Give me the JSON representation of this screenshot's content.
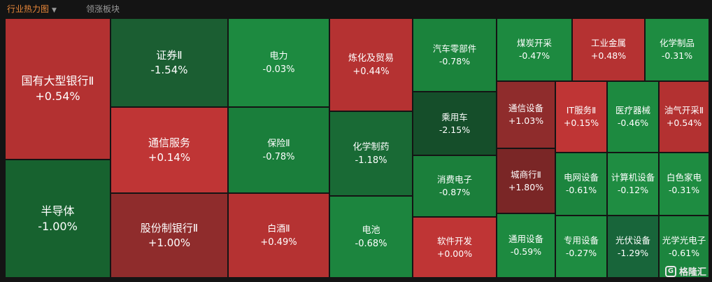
{
  "tabs": {
    "active": "行业热力图",
    "inactive": "领涨板块"
  },
  "colors": {
    "background": "#141414",
    "tab_active": "#e8873a",
    "tab_inactive": "#9a9a9a"
  },
  "tiles": [
    {
      "name": "国有大型银行Ⅱ",
      "change": "+0.54%",
      "color": "#b33131"
    },
    {
      "name": "半导体",
      "change": "-1.00%",
      "color": "#17622f"
    },
    {
      "name": "证券Ⅱ",
      "change": "-1.54%",
      "color": "#1b5e32"
    },
    {
      "name": "通信服务",
      "change": "+0.14%",
      "color": "#bf3535"
    },
    {
      "name": "股份制银行Ⅱ",
      "change": "+1.00%",
      "color": "#8f2c2c"
    },
    {
      "name": "电力",
      "change": "-0.03%",
      "color": "#1d8a40"
    },
    {
      "name": "保险Ⅱ",
      "change": "-0.78%",
      "color": "#1a7e3b"
    },
    {
      "name": "白酒Ⅱ",
      "change": "+0.49%",
      "color": "#b53232"
    },
    {
      "name": "炼化及贸易",
      "change": "+0.44%",
      "color": "#b53232"
    },
    {
      "name": "化学制药",
      "change": "-1.18%",
      "color": "#196a35"
    },
    {
      "name": "电池",
      "change": "-0.68%",
      "color": "#1c853e"
    },
    {
      "name": "汽车零部件",
      "change": "-0.78%",
      "color": "#1b833c"
    },
    {
      "name": "乘用车",
      "change": "-2.15%",
      "color": "#154e2a"
    },
    {
      "name": "消费电子",
      "change": "-0.87%",
      "color": "#1b7f3b"
    },
    {
      "name": "软件开发",
      "change": "+0.00%",
      "color": "#bf3535"
    },
    {
      "name": "煤炭开采",
      "change": "-0.47%",
      "color": "#1d8a40"
    },
    {
      "name": "通信设备",
      "change": "+1.03%",
      "color": "#8f2c2c"
    },
    {
      "name": "城商行Ⅱ",
      "change": "+1.80%",
      "color": "#7a2626"
    },
    {
      "name": "通用设备",
      "change": "-0.59%",
      "color": "#1d8a40"
    },
    {
      "name": "工业金属",
      "change": "+0.48%",
      "color": "#b53232"
    },
    {
      "name": "IT服务Ⅱ",
      "change": "+0.15%",
      "color": "#bf3535"
    },
    {
      "name": "医疗器械",
      "change": "-0.46%",
      "color": "#1d8a40"
    },
    {
      "name": "电网设备",
      "change": "-0.61%",
      "color": "#1c853e"
    },
    {
      "name": "计算机设备",
      "change": "-0.12%",
      "color": "#1f8d42"
    },
    {
      "name": "专用设备",
      "change": "-0.27%",
      "color": "#1e8c41"
    },
    {
      "name": "光伏设备",
      "change": "-1.29%",
      "color": "#18653a"
    },
    {
      "name": "化学制品",
      "change": "-0.31%",
      "color": "#1e8c41"
    },
    {
      "name": "油气开采Ⅱ",
      "change": "+0.54%",
      "color": "#b33131"
    },
    {
      "name": "白色家电",
      "change": "-0.31%",
      "color": "#1e8c41"
    },
    {
      "name": "光学光电子",
      "change": "-0.61%",
      "color": "#1c853e"
    }
  ],
  "watermark": {
    "icon": "G",
    "text": "格隆汇"
  }
}
